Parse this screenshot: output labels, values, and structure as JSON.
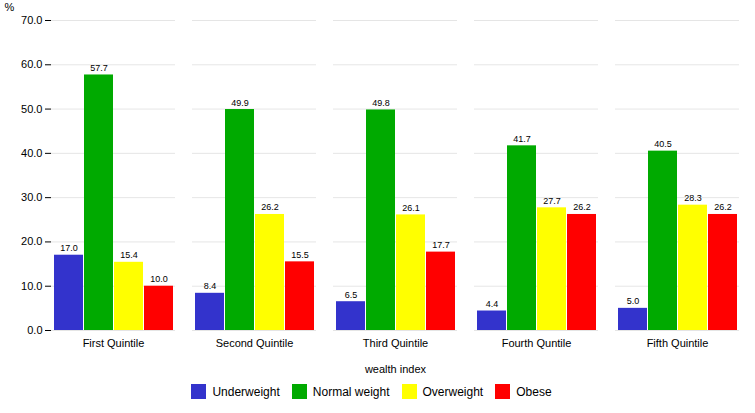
{
  "chart_data": {
    "type": "bar",
    "categories": [
      "First Quintile",
      "Second Quintile",
      "Third Quintile",
      "Fourth Quntile",
      "Fifth Quintile"
    ],
    "series": [
      {
        "name": "Underweight",
        "color": "#3333CC",
        "values": [
          17.0,
          8.4,
          6.5,
          4.4,
          5.0
        ],
        "value_labels": [
          "17.0",
          "8.4",
          "6.5",
          "4.4",
          "5.0"
        ]
      },
      {
        "name": "Normal weight",
        "color": "#00AA00",
        "values": [
          57.7,
          49.9,
          49.8,
          41.7,
          40.5
        ],
        "value_labels": [
          "57.7",
          "49.9",
          "49.8",
          "41.7",
          "40.5"
        ]
      },
      {
        "name": "Overweight",
        "color": "#FFFF00",
        "values": [
          15.4,
          26.2,
          26.1,
          27.7,
          28.3
        ],
        "value_labels": [
          "15.4",
          "26.2",
          "26.1",
          "27.7",
          "28.3"
        ]
      },
      {
        "name": "Obese",
        "color": "#FF0000",
        "values": [
          10.0,
          15.5,
          17.7,
          26.2,
          26.2
        ],
        "value_labels": [
          "10.0",
          "15.5",
          "17.7",
          "26.2",
          "26.2"
        ]
      }
    ],
    "xlabel": "wealth index",
    "ylabel": "%",
    "ylim": [
      0,
      70
    ],
    "yticks": [
      {
        "value": 0,
        "label": "0.0"
      },
      {
        "value": 10,
        "label": "10.0"
      },
      {
        "value": 20,
        "label": "20.0"
      },
      {
        "value": 30,
        "label": "30.0"
      },
      {
        "value": 40,
        "label": "40.0"
      },
      {
        "value": 50,
        "label": "50.0"
      },
      {
        "value": 60,
        "label": "60.0"
      },
      {
        "value": 70,
        "label": "70.0"
      }
    ],
    "grid": true,
    "legend": "bottom",
    "data_labels": true
  }
}
